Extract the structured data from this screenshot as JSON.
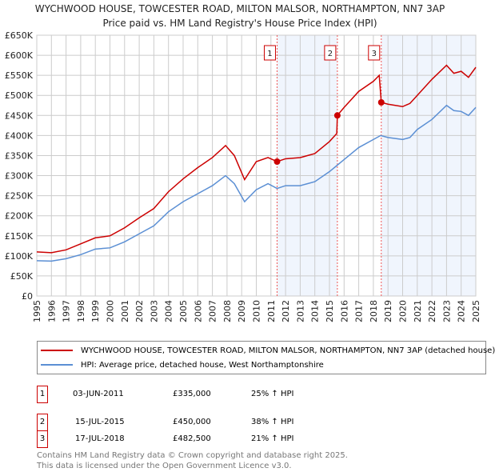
{
  "title": "WYCHWOOD HOUSE, TOWCESTER ROAD, MILTON MALSOR, NORTHAMPTON, NN7 3AP",
  "subtitle": "Price paid vs. HM Land Registry's House Price Index (HPI)",
  "chart_data": {
    "type": "line",
    "title": "WYCHWOOD HOUSE, TOWCESTER ROAD, MILTON MALSOR, NORTHAMPTON, NN7 3AP",
    "subtitle": "Price paid vs. HM Land Registry's House Price Index (HPI)",
    "xlim": [
      1995,
      2025
    ],
    "ylim": [
      0,
      650000
    ],
    "grid": true,
    "x_ticks": [
      "1995",
      "1996",
      "1997",
      "1998",
      "1999",
      "2000",
      "2001",
      "2002",
      "2003",
      "2004",
      "2005",
      "2006",
      "2007",
      "2008",
      "2009",
      "2010",
      "2011",
      "2012",
      "2013",
      "2014",
      "2015",
      "2016",
      "2017",
      "2018",
      "2019",
      "2020",
      "2021",
      "2022",
      "2023",
      "2024",
      "2025"
    ],
    "y_ticks": [
      {
        "v": 0,
        "label": "£0"
      },
      {
        "v": 50000,
        "label": "£50K"
      },
      {
        "v": 100000,
        "label": "£100K"
      },
      {
        "v": 150000,
        "label": "£150K"
      },
      {
        "v": 200000,
        "label": "£200K"
      },
      {
        "v": 250000,
        "label": "£250K"
      },
      {
        "v": 300000,
        "label": "£300K"
      },
      {
        "v": 350000,
        "label": "£350K"
      },
      {
        "v": 400000,
        "label": "£400K"
      },
      {
        "v": 450000,
        "label": "£450K"
      },
      {
        "v": 500000,
        "label": "£500K"
      },
      {
        "v": 550000,
        "label": "£550K"
      },
      {
        "v": 600000,
        "label": "£600K"
      },
      {
        "v": 650000,
        "label": "£650K"
      }
    ],
    "series": [
      {
        "name": "WYCHWOOD HOUSE, TOWCESTER ROAD, MILTON MALSOR, NORTHAMPTON, NN7 3AP (detached house)",
        "color": "#cc0000",
        "x": [
          1995,
          1996,
          1997,
          1998,
          1999,
          2000,
          2001,
          2002,
          2003,
          2004,
          2005,
          2006,
          2007,
          2007.9,
          2008.5,
          2009.2,
          2010,
          2010.8,
          2011.42,
          2012,
          2013,
          2014,
          2015,
          2015.5,
          2015.54,
          2016,
          2017,
          2018,
          2018.4,
          2018.54,
          2019,
          2020,
          2020.5,
          2021,
          2022,
          2023,
          2023.5,
          2024,
          2024.5,
          2025
        ],
        "y": [
          110000,
          108000,
          115000,
          130000,
          145000,
          150000,
          170000,
          195000,
          218000,
          260000,
          292000,
          320000,
          345000,
          375000,
          350000,
          290000,
          335000,
          345000,
          335000,
          342000,
          345000,
          355000,
          385000,
          405000,
          450000,
          470000,
          510000,
          535000,
          550000,
          482500,
          478000,
          472000,
          480000,
          500000,
          540000,
          575000,
          555000,
          560000,
          545000,
          570000
        ]
      },
      {
        "name": "HPI: Average price, detached house, West Northamptonshire",
        "color": "#5b8fd4",
        "x": [
          1995,
          1996,
          1997,
          1998,
          1999,
          2000,
          2001,
          2002,
          2003,
          2004,
          2005,
          2006,
          2007,
          2007.9,
          2008.5,
          2009.2,
          2010,
          2010.8,
          2011.42,
          2012,
          2013,
          2014,
          2015,
          2015.5,
          2016,
          2017,
          2018,
          2018.5,
          2019,
          2020,
          2020.5,
          2021,
          2022,
          2023,
          2023.5,
          2024,
          2024.5,
          2025
        ],
        "y": [
          88000,
          87000,
          93000,
          103000,
          117000,
          120000,
          135000,
          155000,
          175000,
          210000,
          235000,
          255000,
          275000,
          300000,
          280000,
          235000,
          265000,
          280000,
          268000,
          275000,
          275000,
          285000,
          310000,
          325000,
          340000,
          370000,
          390000,
          400000,
          395000,
          390000,
          395000,
          415000,
          440000,
          475000,
          462000,
          460000,
          450000,
          470000
        ]
      }
    ],
    "sales": [
      {
        "n": "1",
        "date": "03-JUN-2011",
        "x": 2011.42,
        "price": "£335,000",
        "value": 335000,
        "hpi": "25% ↑ HPI"
      },
      {
        "n": "2",
        "date": "15-JUL-2015",
        "x": 2015.54,
        "price": "£450,000",
        "value": 450000,
        "hpi": "38% ↑ HPI"
      },
      {
        "n": "3",
        "date": "17-JUL-2018",
        "x": 2018.54,
        "price": "£482,500",
        "value": 482500,
        "hpi": "21% ↑ HPI"
      }
    ]
  },
  "legend": {
    "red": "WYCHWOOD HOUSE, TOWCESTER ROAD, MILTON MALSOR, NORTHAMPTON, NN7 3AP (detached house)",
    "blue": "HPI: Average price, detached house, West Northamptonshire"
  },
  "footer": {
    "line1": "Contains HM Land Registry data © Crown copyright and database right 2025.",
    "line2": "This data is licensed under the Open Government Licence v3.0."
  }
}
